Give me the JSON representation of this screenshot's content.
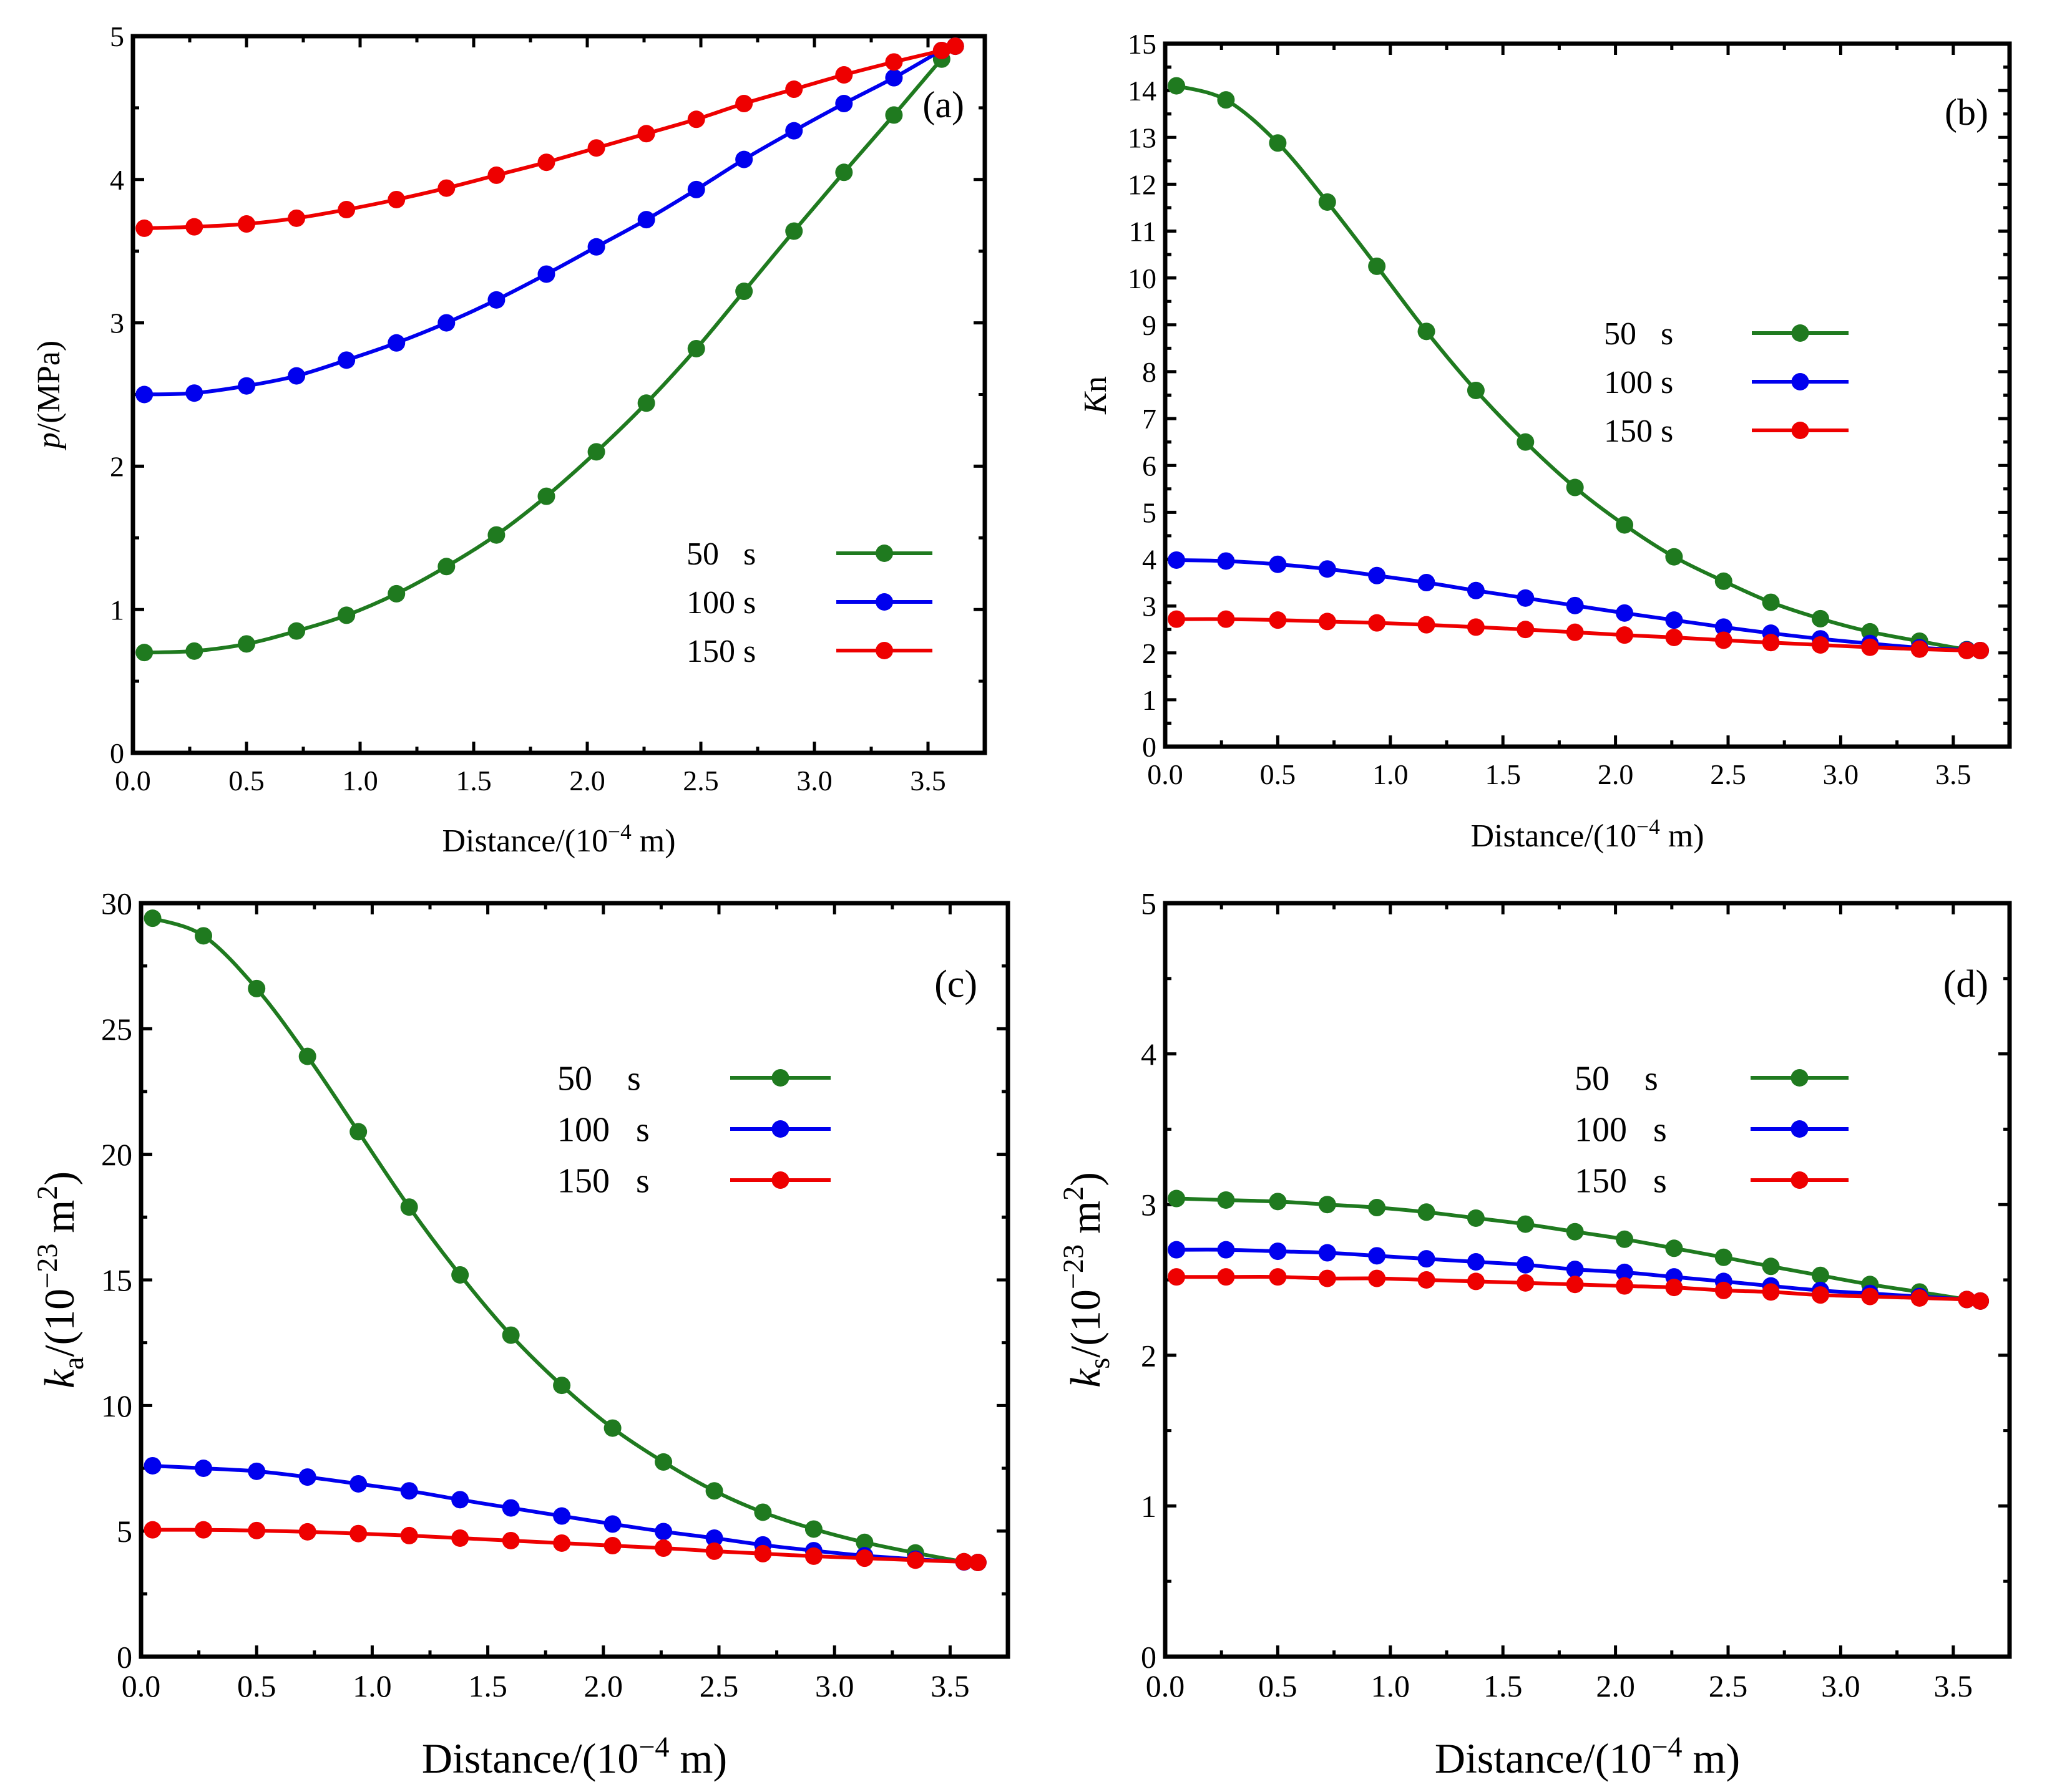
{
  "chart_data": [
    {
      "type": "line",
      "panel_label": "(a)",
      "title": "",
      "xlabel": "Distance/(10",
      "xlabel_exp": "−4",
      "xlabel_tail": " m)",
      "ylabel": "p",
      "ylabel_tail": "/(MPa)",
      "xlim": [
        0,
        3.75
      ],
      "ylim": [
        0,
        5
      ],
      "x_ticks": [
        0,
        0.5,
        1,
        1.5,
        2,
        2.5,
        3,
        3.5
      ],
      "x_tick_labels": [
        "0.0",
        "0.5",
        "1.0",
        "1.5",
        "2.0",
        "2.5",
        "3.0",
        "3.5"
      ],
      "y_ticks": [
        0,
        1,
        2,
        3,
        4,
        5
      ],
      "y_tick_labels": [
        "0",
        "1",
        "2",
        "3",
        "4",
        "5"
      ],
      "legend_position": "lower-right",
      "x": [
        0.05,
        0.27,
        0.5,
        0.72,
        0.94,
        1.16,
        1.38,
        1.6,
        1.82,
        2.04,
        2.26,
        2.48,
        2.69,
        2.91,
        3.13,
        3.35,
        3.56,
        3.62
      ],
      "series": [
        {
          "name": "50   s",
          "color": "#1f7a1f",
          "values": [
            0.7,
            0.71,
            0.76,
            0.85,
            0.96,
            1.11,
            1.3,
            1.52,
            1.79,
            2.1,
            2.44,
            2.82,
            3.22,
            3.64,
            4.05,
            4.45,
            4.84,
            4.93
          ]
        },
        {
          "name": "100 s",
          "color": "#0000ee",
          "values": [
            2.5,
            2.51,
            2.56,
            2.63,
            2.74,
            2.86,
            3.0,
            3.16,
            3.34,
            3.53,
            3.72,
            3.93,
            4.14,
            4.34,
            4.53,
            4.71,
            4.9,
            4.93
          ]
        },
        {
          "name": "150 s",
          "color": "#ee0000",
          "values": [
            3.66,
            3.67,
            3.69,
            3.73,
            3.79,
            3.86,
            3.94,
            4.03,
            4.12,
            4.22,
            4.32,
            4.42,
            4.53,
            4.63,
            4.73,
            4.82,
            4.9,
            4.93
          ]
        }
      ]
    },
    {
      "type": "line",
      "panel_label": "(b)",
      "title": "",
      "xlabel": "Distance/(10",
      "xlabel_exp": "−4",
      "xlabel_tail": " m)",
      "ylabel": "K",
      "ylabel_tail": "n",
      "xlim": [
        0,
        3.75
      ],
      "ylim": [
        0,
        15
      ],
      "x_ticks": [
        0,
        0.5,
        1,
        1.5,
        2,
        2.5,
        3,
        3.5
      ],
      "x_tick_labels": [
        "0.0",
        "0.5",
        "1.0",
        "1.5",
        "2.0",
        "2.5",
        "3.0",
        "3.5"
      ],
      "y_ticks": [
        0,
        1,
        2,
        3,
        4,
        5,
        6,
        7,
        8,
        9,
        10,
        11,
        12,
        13,
        14,
        15
      ],
      "y_tick_labels": [
        "0",
        "1",
        "2",
        "3",
        "4",
        "5",
        "6",
        "7",
        "8",
        "9",
        "10",
        "11",
        "12",
        "13",
        "14",
        "15"
      ],
      "legend_position": "upper-right",
      "x": [
        0.05,
        0.27,
        0.5,
        0.72,
        0.94,
        1.16,
        1.38,
        1.6,
        1.82,
        2.04,
        2.26,
        2.48,
        2.69,
        2.91,
        3.13,
        3.35,
        3.56,
        3.62
      ],
      "series": [
        {
          "name": "50   s",
          "color": "#1f7a1f",
          "values": [
            14.1,
            13.8,
            12.88,
            11.62,
            10.25,
            8.86,
            7.6,
            6.5,
            5.53,
            4.73,
            4.05,
            3.53,
            3.08,
            2.73,
            2.45,
            2.25,
            2.07,
            2.05
          ]
        },
        {
          "name": "100 s",
          "color": "#0000ee",
          "values": [
            3.98,
            3.96,
            3.89,
            3.79,
            3.65,
            3.5,
            3.33,
            3.17,
            3.01,
            2.85,
            2.7,
            2.55,
            2.42,
            2.3,
            2.2,
            2.11,
            2.06,
            2.05
          ]
        },
        {
          "name": "150 s",
          "color": "#ee0000",
          "values": [
            2.72,
            2.72,
            2.7,
            2.67,
            2.64,
            2.6,
            2.55,
            2.5,
            2.44,
            2.38,
            2.33,
            2.27,
            2.22,
            2.17,
            2.12,
            2.08,
            2.05,
            2.05
          ]
        }
      ]
    },
    {
      "type": "line",
      "panel_label": "(c)",
      "title": "",
      "xlabel": "Distance/(10",
      "xlabel_exp": "−4",
      "xlabel_tail": " m)",
      "ylabel": "k",
      "ylabel_sub": "a",
      "ylabel_mid": "/(10",
      "ylabel_exp": "−23",
      "ylabel_unit": " m",
      "ylabel_unit_exp": "2",
      "ylabel_tail": ")",
      "xlim": [
        0,
        3.75
      ],
      "ylim": [
        0,
        30
      ],
      "x_ticks": [
        0,
        0.5,
        1,
        1.5,
        2,
        2.5,
        3,
        3.5
      ],
      "x_tick_labels": [
        "0.0",
        "0.5",
        "1.0",
        "1.5",
        "2.0",
        "2.5",
        "3.0",
        "3.5"
      ],
      "y_ticks": [
        0,
        5,
        10,
        15,
        20,
        25,
        30
      ],
      "y_tick_labels": [
        "0",
        "5",
        "10",
        "15",
        "20",
        "25",
        "30"
      ],
      "legend_position": "upper-right",
      "x": [
        0.05,
        0.27,
        0.5,
        0.72,
        0.94,
        1.16,
        1.38,
        1.6,
        1.82,
        2.04,
        2.26,
        2.48,
        2.69,
        2.91,
        3.13,
        3.35,
        3.56,
        3.62
      ],
      "series": [
        {
          "name": "50    s",
          "color": "#1f7a1f",
          "values": [
            29.4,
            28.7,
            26.6,
            23.9,
            20.9,
            17.9,
            15.2,
            12.8,
            10.8,
            9.1,
            7.75,
            6.6,
            5.75,
            5.08,
            4.55,
            4.13,
            3.78,
            3.75
          ]
        },
        {
          "name": "100   s",
          "color": "#0000ee",
          "values": [
            7.6,
            7.5,
            7.38,
            7.15,
            6.88,
            6.6,
            6.25,
            5.92,
            5.6,
            5.28,
            4.98,
            4.72,
            4.45,
            4.22,
            4.02,
            3.88,
            3.77,
            3.75
          ]
        },
        {
          "name": "150   s",
          "color": "#ee0000",
          "values": [
            5.05,
            5.05,
            5.02,
            4.97,
            4.9,
            4.82,
            4.72,
            4.62,
            4.52,
            4.42,
            4.32,
            4.2,
            4.1,
            4.0,
            3.92,
            3.84,
            3.78,
            3.75
          ]
        }
      ]
    },
    {
      "type": "line",
      "panel_label": "(d)",
      "title": "",
      "xlabel": "Distance/(10",
      "xlabel_exp": "−4",
      "xlabel_tail": " m)",
      "ylabel": "k",
      "ylabel_sub": "s",
      "ylabel_mid": "/(10",
      "ylabel_exp": "−23",
      "ylabel_unit": " m",
      "ylabel_unit_exp": "2",
      "ylabel_tail": ")",
      "xlim": [
        0,
        3.75
      ],
      "ylim": [
        0,
        5
      ],
      "x_ticks": [
        0,
        0.5,
        1,
        1.5,
        2,
        2.5,
        3,
        3.5
      ],
      "x_tick_labels": [
        "0.0",
        "0.5",
        "1.0",
        "1.5",
        "2.0",
        "2.5",
        "3.0",
        "3.5"
      ],
      "y_ticks": [
        0,
        1,
        2,
        3,
        4,
        5
      ],
      "y_tick_labels": [
        "0",
        "1",
        "2",
        "3",
        "4",
        "5"
      ],
      "legend_position": "upper-right",
      "x": [
        0.05,
        0.27,
        0.5,
        0.72,
        0.94,
        1.16,
        1.38,
        1.6,
        1.82,
        2.04,
        2.26,
        2.48,
        2.69,
        2.91,
        3.13,
        3.35,
        3.56,
        3.62
      ],
      "series": [
        {
          "name": "50    s",
          "color": "#1f7a1f",
          "values": [
            3.04,
            3.03,
            3.02,
            3.0,
            2.98,
            2.95,
            2.91,
            2.87,
            2.82,
            2.77,
            2.71,
            2.65,
            2.59,
            2.53,
            2.47,
            2.42,
            2.37,
            2.36
          ]
        },
        {
          "name": "100   s",
          "color": "#0000ee",
          "values": [
            2.7,
            2.7,
            2.69,
            2.68,
            2.66,
            2.64,
            2.62,
            2.6,
            2.57,
            2.55,
            2.52,
            2.49,
            2.46,
            2.43,
            2.41,
            2.39,
            2.37,
            2.36
          ]
        },
        {
          "name": "150   s",
          "color": "#ee0000",
          "values": [
            2.52,
            2.52,
            2.52,
            2.51,
            2.51,
            2.5,
            2.49,
            2.48,
            2.47,
            2.46,
            2.45,
            2.43,
            2.42,
            2.4,
            2.39,
            2.38,
            2.37,
            2.36
          ]
        }
      ]
    }
  ]
}
